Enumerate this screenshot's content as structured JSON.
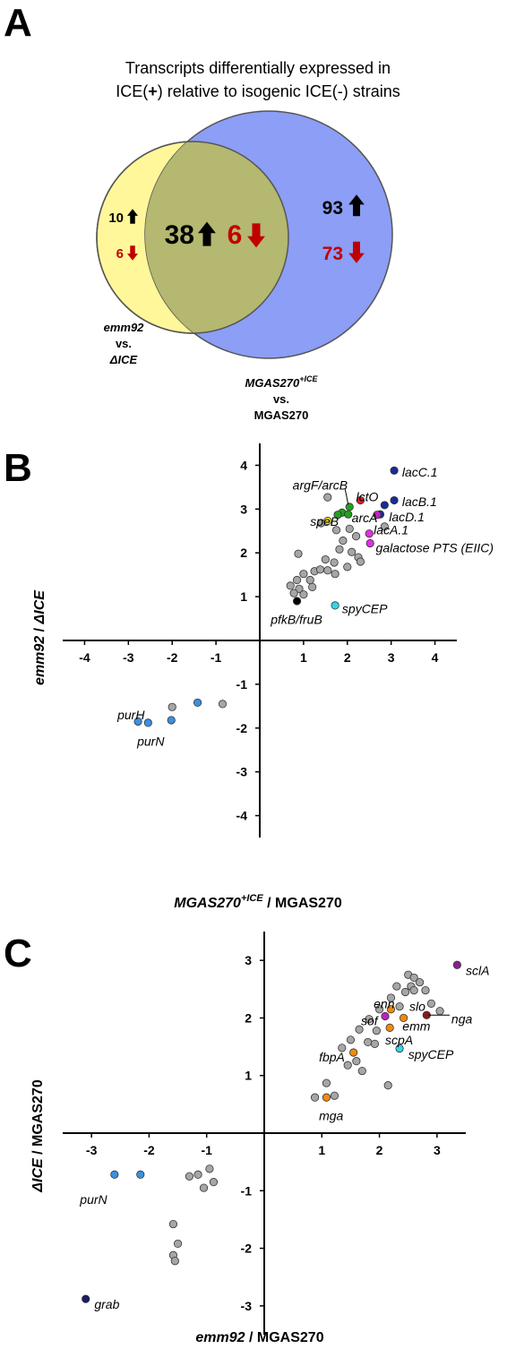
{
  "panels": {
    "a": "A",
    "b": "B",
    "c": "C"
  },
  "colors": {
    "yellow_circle": "#fff79a",
    "blue_circle": "#8c9ef5",
    "overlap": "#b4b870",
    "gray_point": "#a6a6a6",
    "up_arrow": "#000000",
    "down_arrow": "#c00000",
    "down_text": "#c00000"
  },
  "venn": {
    "title_line1": "Transcripts differentially expressed in",
    "title_line2_pre": "ICE(",
    "title_line2_plus": "+",
    "title_line2_post": ") relative to isogenic ICE(-) strains",
    "left_up": "10",
    "left_down": "6",
    "center_up": "38",
    "center_down": "6",
    "right_up": "93",
    "right_down": "73",
    "left_label_1": "emm92",
    "left_label_2": "vs.",
    "left_label_3": "ΔICE",
    "right_label_1a": "MGAS270",
    "right_label_1b": "+ICE",
    "right_label_2": "vs.",
    "right_label_3": "MGAS270"
  },
  "chart_data": [
    {
      "type": "scatter",
      "panel": "B",
      "xlabel_italic": "MGAS270",
      "xlabel_sup": "+ICE",
      "xlabel_rest": " / MGAS270",
      "ylabel_italic": "emm92",
      "ylabel_rest": " / ",
      "ylabel_italic2": "ΔICE",
      "xlim": [
        -4.5,
        4.5
      ],
      "ylim": [
        -4.5,
        4.5
      ],
      "xticks": [
        -4,
        -3,
        -2,
        -1,
        1,
        2,
        3,
        4
      ],
      "yticks": [
        -4,
        -3,
        -2,
        -1,
        1,
        2,
        3,
        4
      ],
      "points": [
        {
          "x": 3.07,
          "y": 3.88,
          "color": "#1a2a9a"
        },
        {
          "x": 3.07,
          "y": 3.2,
          "color": "#1a2a9a"
        },
        {
          "x": 2.85,
          "y": 3.09,
          "color": "#1a2a9a"
        },
        {
          "x": 2.75,
          "y": 2.88,
          "color": "#1a2a9a"
        },
        {
          "x": 2.3,
          "y": 3.2,
          "color": "#e0202a"
        },
        {
          "x": 2.05,
          "y": 3.05,
          "color": "#22a022"
        },
        {
          "x": 1.88,
          "y": 2.92,
          "color": "#22a022"
        },
        {
          "x": 2.02,
          "y": 2.88,
          "color": "#22a022"
        },
        {
          "x": 1.78,
          "y": 2.87,
          "color": "#22a022"
        },
        {
          "x": 2.68,
          "y": 2.87,
          "color": "#c020c0"
        },
        {
          "x": 2.5,
          "y": 2.44,
          "color": "#e030e0"
        },
        {
          "x": 2.52,
          "y": 2.22,
          "color": "#e030e0"
        },
        {
          "x": 1.55,
          "y": 2.73,
          "color": "#f2e020"
        },
        {
          "x": 1.72,
          "y": 0.8,
          "color": "#30d8e8"
        },
        {
          "x": 0.85,
          "y": 0.9,
          "color": "#000000"
        },
        {
          "x": -2.78,
          "y": -1.85,
          "color": "#3a90e0"
        },
        {
          "x": -2.55,
          "y": -1.88,
          "color": "#3a90e0"
        },
        {
          "x": -2.02,
          "y": -1.82,
          "color": "#3a90e0"
        },
        {
          "x": -1.42,
          "y": -1.42,
          "color": "#3a90e0"
        },
        {
          "x": -2.0,
          "y": -1.52,
          "color": "#a6a6a6"
        },
        {
          "x": -0.85,
          "y": -1.45,
          "color": "#a6a6a6"
        },
        {
          "x": 1.55,
          "y": 3.27,
          "color": "#a6a6a6"
        },
        {
          "x": 1.4,
          "y": 2.68,
          "color": "#a6a6a6"
        },
        {
          "x": 1.75,
          "y": 2.52,
          "color": "#a6a6a6"
        },
        {
          "x": 2.05,
          "y": 2.55,
          "color": "#a6a6a6"
        },
        {
          "x": 1.9,
          "y": 2.28,
          "color": "#a6a6a6"
        },
        {
          "x": 2.2,
          "y": 2.38,
          "color": "#a6a6a6"
        },
        {
          "x": 2.85,
          "y": 2.6,
          "color": "#a6a6a6"
        },
        {
          "x": 1.82,
          "y": 2.08,
          "color": "#a6a6a6"
        },
        {
          "x": 2.1,
          "y": 2.02,
          "color": "#a6a6a6"
        },
        {
          "x": 2.25,
          "y": 1.9,
          "color": "#a6a6a6"
        },
        {
          "x": 0.88,
          "y": 1.98,
          "color": "#a6a6a6"
        },
        {
          "x": 1.5,
          "y": 1.85,
          "color": "#a6a6a6"
        },
        {
          "x": 1.7,
          "y": 1.78,
          "color": "#a6a6a6"
        },
        {
          "x": 2.0,
          "y": 1.68,
          "color": "#a6a6a6"
        },
        {
          "x": 2.3,
          "y": 1.8,
          "color": "#a6a6a6"
        },
        {
          "x": 1.25,
          "y": 1.58,
          "color": "#a6a6a6"
        },
        {
          "x": 1.38,
          "y": 1.62,
          "color": "#a6a6a6"
        },
        {
          "x": 1.55,
          "y": 1.6,
          "color": "#a6a6a6"
        },
        {
          "x": 1.72,
          "y": 1.52,
          "color": "#a6a6a6"
        },
        {
          "x": 1.0,
          "y": 1.52,
          "color": "#a6a6a6"
        },
        {
          "x": 0.85,
          "y": 1.38,
          "color": "#a6a6a6"
        },
        {
          "x": 1.15,
          "y": 1.38,
          "color": "#a6a6a6"
        },
        {
          "x": 0.7,
          "y": 1.25,
          "color": "#a6a6a6"
        },
        {
          "x": 0.9,
          "y": 1.18,
          "color": "#a6a6a6"
        },
        {
          "x": 1.2,
          "y": 1.22,
          "color": "#a6a6a6"
        },
        {
          "x": 0.78,
          "y": 1.08,
          "color": "#a6a6a6"
        },
        {
          "x": 1.0,
          "y": 1.05,
          "color": "#a6a6a6"
        }
      ],
      "annotations": [
        {
          "text": "lacC.1",
          "x": 3.25,
          "y": 3.85
        },
        {
          "text": "lacB.1",
          "x": 3.25,
          "y": 3.17
        },
        {
          "text": "lacD.1",
          "x": 2.95,
          "y": 2.82
        },
        {
          "text": "lacA.1",
          "x": 2.6,
          "y": 2.53
        },
        {
          "text": "galactose PTS (EIIC)",
          "x": 2.65,
          "y": 2.12
        },
        {
          "text": "lctO",
          "x": 2.2,
          "y": 3.28
        },
        {
          "text": "argF/arcB",
          "x": 0.75,
          "y": 3.55
        },
        {
          "text": "speB",
          "x": 1.15,
          "y": 2.72
        },
        {
          "text": "arcA",
          "x": 2.1,
          "y": 2.8
        },
        {
          "text": "spyCEP",
          "x": 1.88,
          "y": 0.73
        },
        {
          "text": "pfkB/fruB",
          "x": 0.25,
          "y": 0.48
        },
        {
          "text": "purH",
          "x": -3.25,
          "y": -1.7
        },
        {
          "text": "purN",
          "x": -2.8,
          "y": -2.3
        }
      ]
    },
    {
      "type": "scatter",
      "panel": "C",
      "xlabel_italic": "emm92",
      "xlabel_rest": " / MGAS270",
      "ylabel_italic": "ΔICE",
      "ylabel_rest": " / MGAS270",
      "xlim": [
        -3.5,
        3.5
      ],
      "ylim": [
        -3.5,
        3.5
      ],
      "xticks": [
        -3,
        -2,
        -1,
        1,
        2,
        3
      ],
      "yticks": [
        -3,
        -2,
        -1,
        1,
        2,
        3
      ],
      "points": [
        {
          "x": 3.35,
          "y": 2.92,
          "color": "#8a2090"
        },
        {
          "x": 2.82,
          "y": 2.05,
          "color": "#8a1a1a"
        },
        {
          "x": 2.1,
          "y": 2.03,
          "color": "#c020c0"
        },
        {
          "x": 2.2,
          "y": 2.15,
          "color": "#f08a10"
        },
        {
          "x": 2.42,
          "y": 2.0,
          "color": "#f08a10"
        },
        {
          "x": 2.18,
          "y": 1.83,
          "color": "#f08a10"
        },
        {
          "x": 1.55,
          "y": 1.4,
          "color": "#f08a10"
        },
        {
          "x": 1.08,
          "y": 0.62,
          "color": "#f08a10"
        },
        {
          "x": 2.35,
          "y": 1.47,
          "color": "#30d8e8"
        },
        {
          "x": -2.6,
          "y": -0.72,
          "color": "#3a90e0"
        },
        {
          "x": -2.15,
          "y": -0.72,
          "color": "#3a90e0"
        },
        {
          "x": -3.1,
          "y": -2.88,
          "color": "#1a1a6a"
        },
        {
          "x": 2.5,
          "y": 2.75,
          "color": "#a6a6a6"
        },
        {
          "x": 2.6,
          "y": 2.7,
          "color": "#a6a6a6"
        },
        {
          "x": 2.7,
          "y": 2.62,
          "color": "#a6a6a6"
        },
        {
          "x": 2.55,
          "y": 2.55,
          "color": "#a6a6a6"
        },
        {
          "x": 2.45,
          "y": 2.45,
          "color": "#a6a6a6"
        },
        {
          "x": 2.6,
          "y": 2.48,
          "color": "#a6a6a6"
        },
        {
          "x": 2.8,
          "y": 2.48,
          "color": "#a6a6a6"
        },
        {
          "x": 2.3,
          "y": 2.55,
          "color": "#a6a6a6"
        },
        {
          "x": 2.2,
          "y": 2.35,
          "color": "#a6a6a6"
        },
        {
          "x": 2.9,
          "y": 2.25,
          "color": "#a6a6a6"
        },
        {
          "x": 3.05,
          "y": 2.12,
          "color": "#a6a6a6"
        },
        {
          "x": 2.35,
          "y": 2.2,
          "color": "#a6a6a6"
        },
        {
          "x": 2.0,
          "y": 2.15,
          "color": "#a6a6a6"
        },
        {
          "x": 1.82,
          "y": 1.98,
          "color": "#a6a6a6"
        },
        {
          "x": 1.65,
          "y": 1.8,
          "color": "#a6a6a6"
        },
        {
          "x": 1.95,
          "y": 1.78,
          "color": "#a6a6a6"
        },
        {
          "x": 1.5,
          "y": 1.62,
          "color": "#a6a6a6"
        },
        {
          "x": 1.35,
          "y": 1.48,
          "color": "#a6a6a6"
        },
        {
          "x": 1.8,
          "y": 1.58,
          "color": "#a6a6a6"
        },
        {
          "x": 1.92,
          "y": 1.55,
          "color": "#a6a6a6"
        },
        {
          "x": 1.6,
          "y": 1.25,
          "color": "#a6a6a6"
        },
        {
          "x": 1.7,
          "y": 1.08,
          "color": "#a6a6a6"
        },
        {
          "x": 1.45,
          "y": 1.18,
          "color": "#a6a6a6"
        },
        {
          "x": 2.15,
          "y": 0.83,
          "color": "#a6a6a6"
        },
        {
          "x": 1.08,
          "y": 0.87,
          "color": "#a6a6a6"
        },
        {
          "x": 1.22,
          "y": 0.65,
          "color": "#a6a6a6"
        },
        {
          "x": 0.88,
          "y": 0.62,
          "color": "#a6a6a6"
        },
        {
          "x": -1.3,
          "y": -0.75,
          "color": "#a6a6a6"
        },
        {
          "x": -1.15,
          "y": -0.72,
          "color": "#a6a6a6"
        },
        {
          "x": -0.95,
          "y": -0.62,
          "color": "#a6a6a6"
        },
        {
          "x": -0.88,
          "y": -0.85,
          "color": "#a6a6a6"
        },
        {
          "x": -1.05,
          "y": -0.95,
          "color": "#a6a6a6"
        },
        {
          "x": -1.58,
          "y": -1.58,
          "color": "#a6a6a6"
        },
        {
          "x": -1.5,
          "y": -1.92,
          "color": "#a6a6a6"
        },
        {
          "x": -1.58,
          "y": -2.12,
          "color": "#a6a6a6"
        },
        {
          "x": -1.55,
          "y": -2.22,
          "color": "#a6a6a6"
        }
      ],
      "annotations": [
        {
          "text": "sclA",
          "x": 3.5,
          "y": 2.82
        },
        {
          "text": "nga",
          "x": 3.25,
          "y": 1.98
        },
        {
          "text": "slo",
          "x": 2.52,
          "y": 2.2
        },
        {
          "text": "enn",
          "x": 1.9,
          "y": 2.25
        },
        {
          "text": "sof",
          "x": 1.68,
          "y": 1.95
        },
        {
          "text": "emm",
          "x": 2.4,
          "y": 1.86
        },
        {
          "text": "scpA",
          "x": 2.1,
          "y": 1.62
        },
        {
          "text": "spyCEP",
          "x": 2.5,
          "y": 1.37
        },
        {
          "text": "fbpA",
          "x": 0.95,
          "y": 1.32
        },
        {
          "text": "mga",
          "x": 0.95,
          "y": 0.3
        },
        {
          "text": "purN",
          "x": -3.2,
          "y": -1.15
        },
        {
          "text": "grab",
          "x": -2.95,
          "y": -2.97
        }
      ]
    }
  ]
}
